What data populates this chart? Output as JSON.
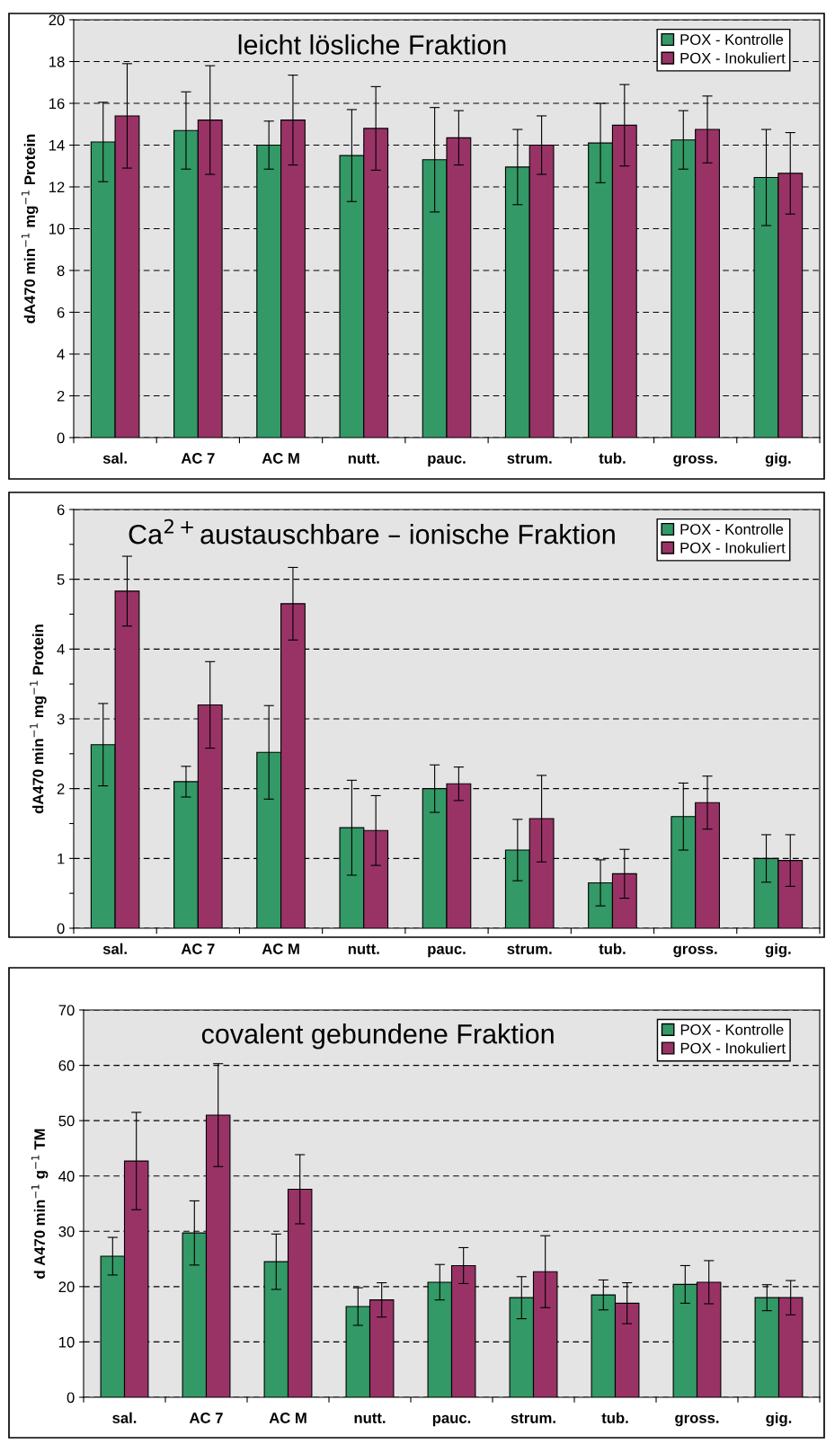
{
  "chart_data": [
    {
      "type": "bar",
      "title": "leicht lösliche Fraktion",
      "ylabel": "dA470 min$^{−1}$ mg$^{−1}$ Protein",
      "categories": [
        "sal.",
        "AC 7",
        "AC M",
        "nutt.",
        "pauc.",
        "strum.",
        "tub.",
        "gross.",
        "gig."
      ],
      "series": [
        {
          "name": "POX - Kontrolle",
          "color": "#339966",
          "values": [
            14.15,
            14.7,
            14.0,
            13.5,
            13.3,
            12.95,
            14.1,
            14.25,
            12.45
          ],
          "errors": [
            1.9,
            1.85,
            1.15,
            2.2,
            2.5,
            1.8,
            1.9,
            1.4,
            2.3
          ]
        },
        {
          "name": "POX - Inokuliert",
          "color": "#993366",
          "values": [
            15.4,
            15.2,
            15.2,
            14.8,
            14.35,
            14.0,
            14.95,
            14.75,
            12.65
          ],
          "errors": [
            2.5,
            2.6,
            2.15,
            2.0,
            1.3,
            1.4,
            1.95,
            1.6,
            1.95
          ]
        }
      ],
      "ylim": [
        0,
        20
      ],
      "yticks": [
        0,
        2,
        4,
        6,
        8,
        10,
        12,
        14,
        16,
        18,
        20
      ],
      "grid": "y",
      "legend": "top right"
    },
    {
      "type": "bar",
      "title": "Ca$^{2+}$austauschbare – ionische Fraktion",
      "ylabel": "dA470 min$^{−1}$ mg$^{−1}$ Protein",
      "categories": [
        "sal.",
        "AC 7",
        "AC M",
        "nutt.",
        "pauc.",
        "strum.",
        "tub.",
        "gross.",
        "gig."
      ],
      "series": [
        {
          "name": "POX - Kontrolle",
          "color": "#339966",
          "values": [
            2.63,
            2.1,
            2.52,
            1.44,
            2.0,
            1.12,
            0.65,
            1.6,
            1.0
          ],
          "errors": [
            0.59,
            0.22,
            0.67,
            0.68,
            0.34,
            0.44,
            0.33,
            0.48,
            0.34
          ]
        },
        {
          "name": "POX - Inokuliert",
          "color": "#993366",
          "values": [
            4.83,
            3.2,
            4.65,
            1.4,
            2.07,
            1.57,
            0.78,
            1.8,
            0.97
          ],
          "errors": [
            0.5,
            0.62,
            0.52,
            0.5,
            0.24,
            0.62,
            0.35,
            0.38,
            0.37
          ]
        }
      ],
      "ylim": [
        0,
        6
      ],
      "yticks": [
        0,
        {
          "value": 0.5,
          "label": null
        },
        1,
        {
          "value": 1.5,
          "label": null
        },
        2,
        {
          "value": 2.5,
          "label": null
        },
        3,
        {
          "value": 3.5,
          "label": null
        },
        4,
        {
          "value": 4.5,
          "label": null
        },
        5,
        {
          "value": 5.5,
          "label": null
        },
        6
      ],
      "grid": "y",
      "legend": "top right"
    },
    {
      "type": "bar",
      "title": "covalent gebundene Fraktion",
      "ylabel": "d A470 min$^{−1}$ g$^{−1}$ TM",
      "categories": [
        "sal.",
        "AC 7",
        "AC M",
        "nutt.",
        "pauc.",
        "strum.",
        "tub.",
        "gross.",
        "gig."
      ],
      "series": [
        {
          "name": "POX - Kontrolle",
          "color": "#339966",
          "values": [
            25.5,
            29.7,
            24.5,
            16.4,
            20.8,
            18.0,
            18.5,
            20.4,
            18.0
          ],
          "errors": [
            3.4,
            5.8,
            5.0,
            3.4,
            3.2,
            3.8,
            2.7,
            3.4,
            2.35
          ]
        },
        {
          "name": "POX - Inokuliert",
          "color": "#993366",
          "values": [
            42.7,
            51.0,
            37.6,
            17.6,
            23.8,
            22.7,
            17.0,
            20.8,
            18.0
          ],
          "errors": [
            8.8,
            9.3,
            6.25,
            3.1,
            3.25,
            6.5,
            3.7,
            3.9,
            3.1
          ]
        }
      ],
      "ylim": [
        0,
        70
      ],
      "yticks": [
        0,
        10,
        20,
        30,
        40,
        50,
        60,
        70
      ],
      "grid": "y",
      "legend": "top right"
    }
  ]
}
